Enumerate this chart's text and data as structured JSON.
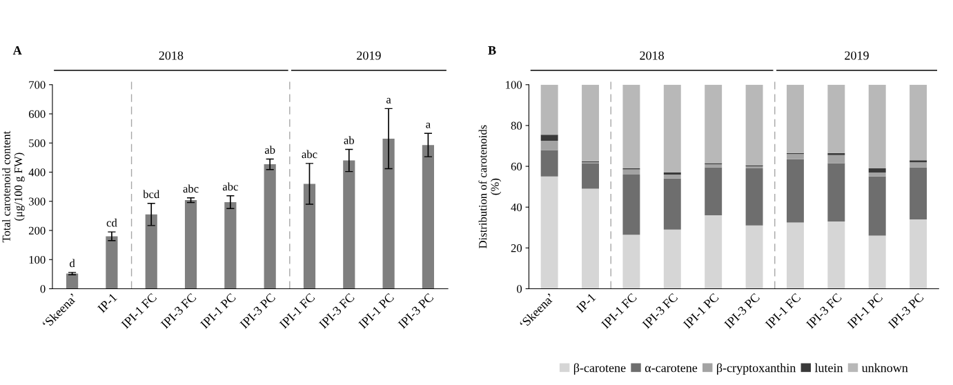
{
  "chart_data": [
    {
      "type": "bar",
      "title": "A",
      "ylabel": "Total carotenoid content\n(μg/100 g FW)",
      "categories": [
        "‘Skeena’",
        "IP-1",
        "IPI-1 FC",
        "IPI-3 FC",
        "IPI-1 PC",
        "IPI-3 PC",
        "IPI-1 FC",
        "IPI-3 FC",
        "IPI-1 PC",
        "IPI-3 PC"
      ],
      "values": [
        52,
        180,
        255,
        304,
        297,
        427,
        360,
        440,
        515,
        493
      ],
      "errors": [
        4,
        15,
        38,
        8,
        22,
        18,
        70,
        38,
        103,
        40
      ],
      "color": "#7f7f7f",
      "ylim": [
        0,
        700
      ],
      "yticks": [
        0,
        100,
        200,
        300,
        400,
        500,
        600,
        700
      ],
      "grid": false,
      "annotations": [
        "2018",
        "2019",
        "d",
        "cd",
        "bcd",
        "abc",
        "abc",
        "ab",
        "abc",
        "ab",
        "a",
        "a"
      ]
    },
    {
      "type": "bar",
      "title": "B",
      "ylabel": "Distribution of carotenoids\n(%)",
      "stacked": true,
      "categories": [
        "‘Skeena’",
        "IP-1",
        "IPI-1 FC",
        "IPI-3 FC",
        "IPI-1 PC",
        "IPI-3 PC",
        "IPI-1 FC",
        "IPI-3 FC",
        "IPI-1 PC",
        "IPI-3 PC"
      ],
      "series": [
        {
          "name": "β-carotene",
          "color": "#d6d6d6",
          "values": [
            55,
            49,
            26.5,
            29,
            36,
            31,
            32.5,
            33,
            26,
            34
          ]
        },
        {
          "name": "α-carotene",
          "color": "#6e6e6e",
          "values": [
            13,
            12.5,
            29.5,
            25,
            23.5,
            28,
            31,
            28.5,
            29,
            25.5
          ]
        },
        {
          "name": "β-cryptoxanthin",
          "color": "#a3a3a3",
          "values": [
            4.5,
            0.5,
            2.5,
            2,
            1.5,
            1,
            2.5,
            4,
            2,
            2.5
          ]
        },
        {
          "name": "lutein",
          "color": "#3a3a3a",
          "values": [
            3,
            0.5,
            0.5,
            1,
            0.5,
            0.5,
            0.5,
            1,
            2,
            1
          ]
        },
        {
          "name": "unknown",
          "color": "#b8b8b8",
          "values": [
            24.5,
            37.5,
            41,
            43,
            38.5,
            39.5,
            33.5,
            33.5,
            41,
            37
          ]
        }
      ],
      "ylim": [
        0,
        100
      ],
      "yticks": [
        0,
        20,
        40,
        60,
        80,
        100
      ],
      "grid": false,
      "legend": "bottom",
      "annotations": [
        "2018",
        "2019"
      ]
    }
  ]
}
